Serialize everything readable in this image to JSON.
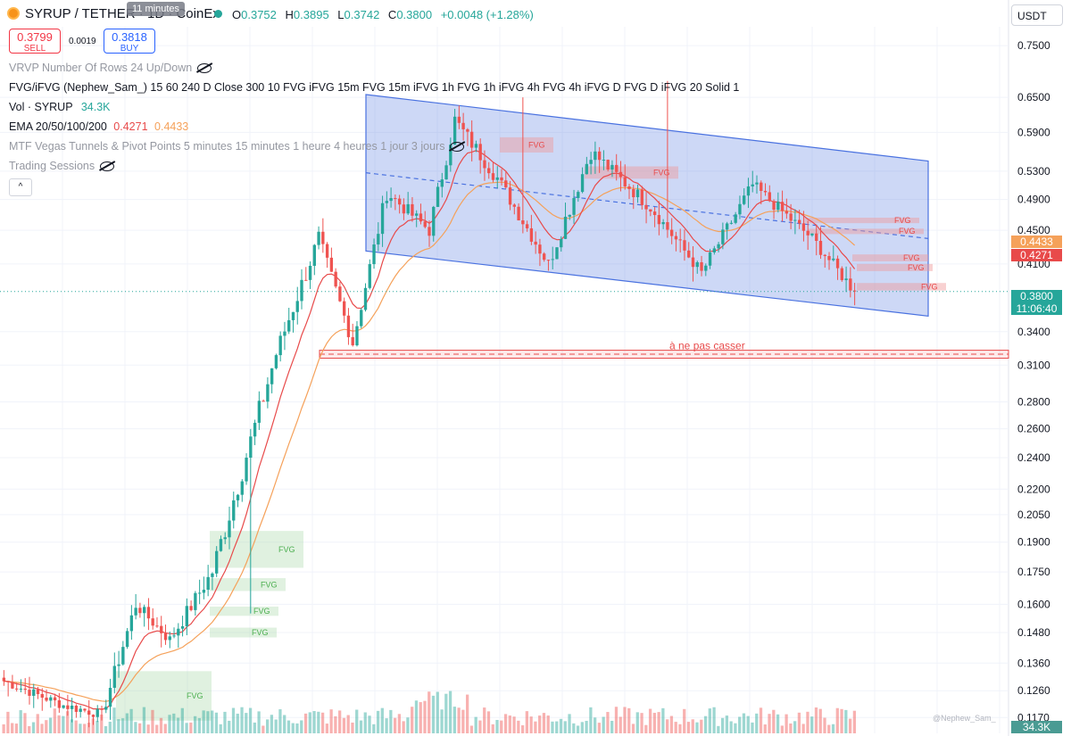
{
  "header": {
    "symbol_title": "SYRUP / TETHER · 1D · CoinEx",
    "tooltip": "11 minutes",
    "ohlc": {
      "o_label": "O",
      "o": "0.3752",
      "h_label": "H",
      "h": "0.3895",
      "l_label": "L",
      "l": "0.3742",
      "c_label": "C",
      "c": "0.3800",
      "change": "+0.0048 (+1.28%)"
    },
    "currency": "USDT"
  },
  "trade": {
    "sell_price": "0.3799",
    "sell_label": "SELL",
    "spread": "0.0019",
    "buy_price": "0.3818",
    "buy_label": "BUY"
  },
  "indicators": {
    "vrvp": "VRVP Number Of Rows 24 Up/Down",
    "fvg": "FVG/iFVG (Nephew_Sam_) 15 60 240 D Close 300 10 FVG iFVG 15m FVG 15m iFVG 1h FVG 1h iFVG 4h FVG 4h iFVG D FVG D iFVG 20 Solid 1",
    "vol_label": "Vol · SYRUP",
    "vol_value": "34.3K",
    "ema_label": "EMA 20/50/100/200",
    "ema_a": "0.4271",
    "ema_b": "0.4433",
    "mtf": "MTF Vegas Tunnels & Pivot Points 5 minutes 15 minutes 1 heure 4 heures 1 jour 3 jours",
    "sessions": "Trading Sessions",
    "collapse": "^"
  },
  "axis_badges": {
    "ema_orange": "0.4433",
    "ema_red": "0.4271",
    "price": "0.3800",
    "countdown": "11:06:40",
    "volume": "34.3K"
  },
  "watermark": "@Nephew_Sam_",
  "colors": {
    "up": "#26a69a",
    "down": "#ef5350",
    "ema_fast": "#e84a4a",
    "ema_slow": "#f5a15a",
    "channel": "#4a72e0",
    "fvg_red": "#ef9a9a",
    "fvg_green": "#a5d6a7"
  },
  "chart_data": {
    "type": "candlestick",
    "scale": "log",
    "y_ticks": [
      "0.7500",
      "0.6500",
      "0.5900",
      "0.5300",
      "0.4900",
      "0.4500",
      "0.4100",
      "0.3400",
      "0.3100",
      "0.2800",
      "0.2600",
      "0.2400",
      "0.2200",
      "0.2050",
      "0.1900",
      "0.1750",
      "0.1600",
      "0.1480",
      "0.1360",
      "0.1260",
      "0.1170"
    ],
    "ylim": [
      0.112,
      0.79
    ],
    "candles_from_segments": [
      {
        "n": 15,
        "start": 0.13,
        "end": 0.121,
        "vol": 0.35
      },
      {
        "n": 9,
        "start": 0.121,
        "end": 0.118,
        "vol": 0.35
      },
      {
        "n": 8,
        "start": 0.118,
        "end": 0.16,
        "vol": 0.55
      },
      {
        "n": 8,
        "start": 0.16,
        "end": 0.145,
        "vol": 0.45
      },
      {
        "n": 10,
        "start": 0.145,
        "end": 0.175,
        "vol": 0.55
      },
      {
        "n": 15,
        "start": 0.175,
        "end": 0.32,
        "vol": 0.85
      },
      {
        "n": 10,
        "start": 0.32,
        "end": 0.44,
        "vol": 0.65
      },
      {
        "n": 8,
        "start": 0.44,
        "end": 0.33,
        "vol": 0.55
      },
      {
        "n": 8,
        "start": 0.33,
        "end": 0.5,
        "vol": 0.6
      },
      {
        "n": 10,
        "start": 0.5,
        "end": 0.45,
        "vol": 0.5
      },
      {
        "n": 6,
        "start": 0.45,
        "end": 0.61,
        "vol": 0.6
      },
      {
        "n": 10,
        "start": 0.61,
        "end": 0.52,
        "vol": 0.55
      },
      {
        "n": 12,
        "start": 0.52,
        "end": 0.41,
        "vol": 0.5
      },
      {
        "n": 10,
        "start": 0.41,
        "end": 0.56,
        "vol": 0.6
      },
      {
        "n": 14,
        "start": 0.56,
        "end": 0.48,
        "vol": 0.5
      },
      {
        "n": 12,
        "start": 0.48,
        "end": 0.4,
        "vol": 0.45
      },
      {
        "n": 12,
        "start": 0.4,
        "end": 0.51,
        "vol": 0.5
      },
      {
        "n": 14,
        "start": 0.51,
        "end": 0.44,
        "vol": 0.45
      },
      {
        "n": 10,
        "start": 0.44,
        "end": 0.38,
        "vol": 0.45
      }
    ],
    "wicks": [
      {
        "index": 156,
        "high": 0.68
      },
      {
        "index": 122,
        "high": 0.65
      },
      {
        "index": 58,
        "low": 0.156
      }
    ],
    "ema_20_last": 0.4271,
    "ema_50_last": 0.4433,
    "last_close": 0.38,
    "channel": {
      "upper": {
        "from": [
          0.0,
          0.655
        ],
        "to": [
          1.0,
          0.545
        ]
      },
      "lower": {
        "from": [
          0.0,
          0.425
        ],
        "to": [
          1.0,
          0.355
        ]
      },
      "mid_dashed": true
    },
    "support_zone": {
      "low": 0.316,
      "high": 0.323,
      "label": "à ne pas casser"
    },
    "fvg_labels": [
      "FVG",
      "FVG",
      "FVG",
      "FVG",
      "FVG",
      "FVG",
      "FVG",
      "FVG",
      "FVG",
      "FVG",
      "FVG",
      "FVG"
    ],
    "fvg_zones": [
      {
        "color": "red",
        "low": 0.558,
        "high": 0.582
      },
      {
        "color": "red",
        "low": 0.519,
        "high": 0.537
      },
      {
        "color": "red",
        "low": 0.459,
        "high": 0.466
      },
      {
        "color": "red",
        "low": 0.446,
        "high": 0.452
      },
      {
        "color": "red",
        "low": 0.413,
        "high": 0.421
      },
      {
        "color": "red",
        "low": 0.402,
        "high": 0.41
      },
      {
        "color": "red",
        "low": 0.381,
        "high": 0.389
      },
      {
        "color": "green",
        "low": 0.177,
        "high": 0.196
      },
      {
        "color": "green",
        "low": 0.166,
        "high": 0.172
      },
      {
        "color": "green",
        "low": 0.155,
        "high": 0.159
      },
      {
        "color": "green",
        "low": 0.146,
        "high": 0.15
      },
      {
        "color": "green",
        "low": 0.116,
        "high": 0.133
      }
    ]
  }
}
